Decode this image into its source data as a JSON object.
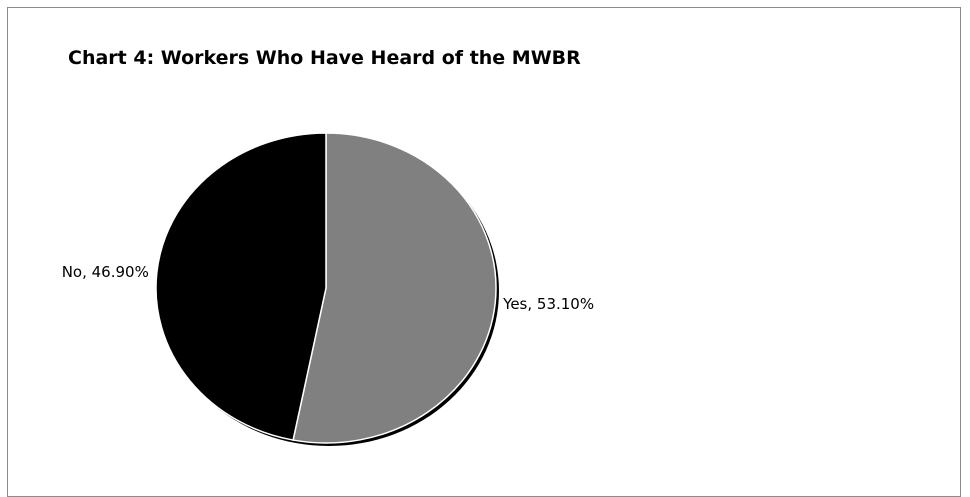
{
  "chart_data": {
    "type": "pie",
    "title": "Chart 4: Workers Who Have Heard of the MWBR",
    "categories": [
      "Yes",
      "No"
    ],
    "values": [
      53.1,
      46.9
    ],
    "labels": [
      "Yes, 53.10%",
      "No, 46.90%"
    ],
    "colors": [
      "#808080",
      "#000000"
    ],
    "legend": "none"
  }
}
